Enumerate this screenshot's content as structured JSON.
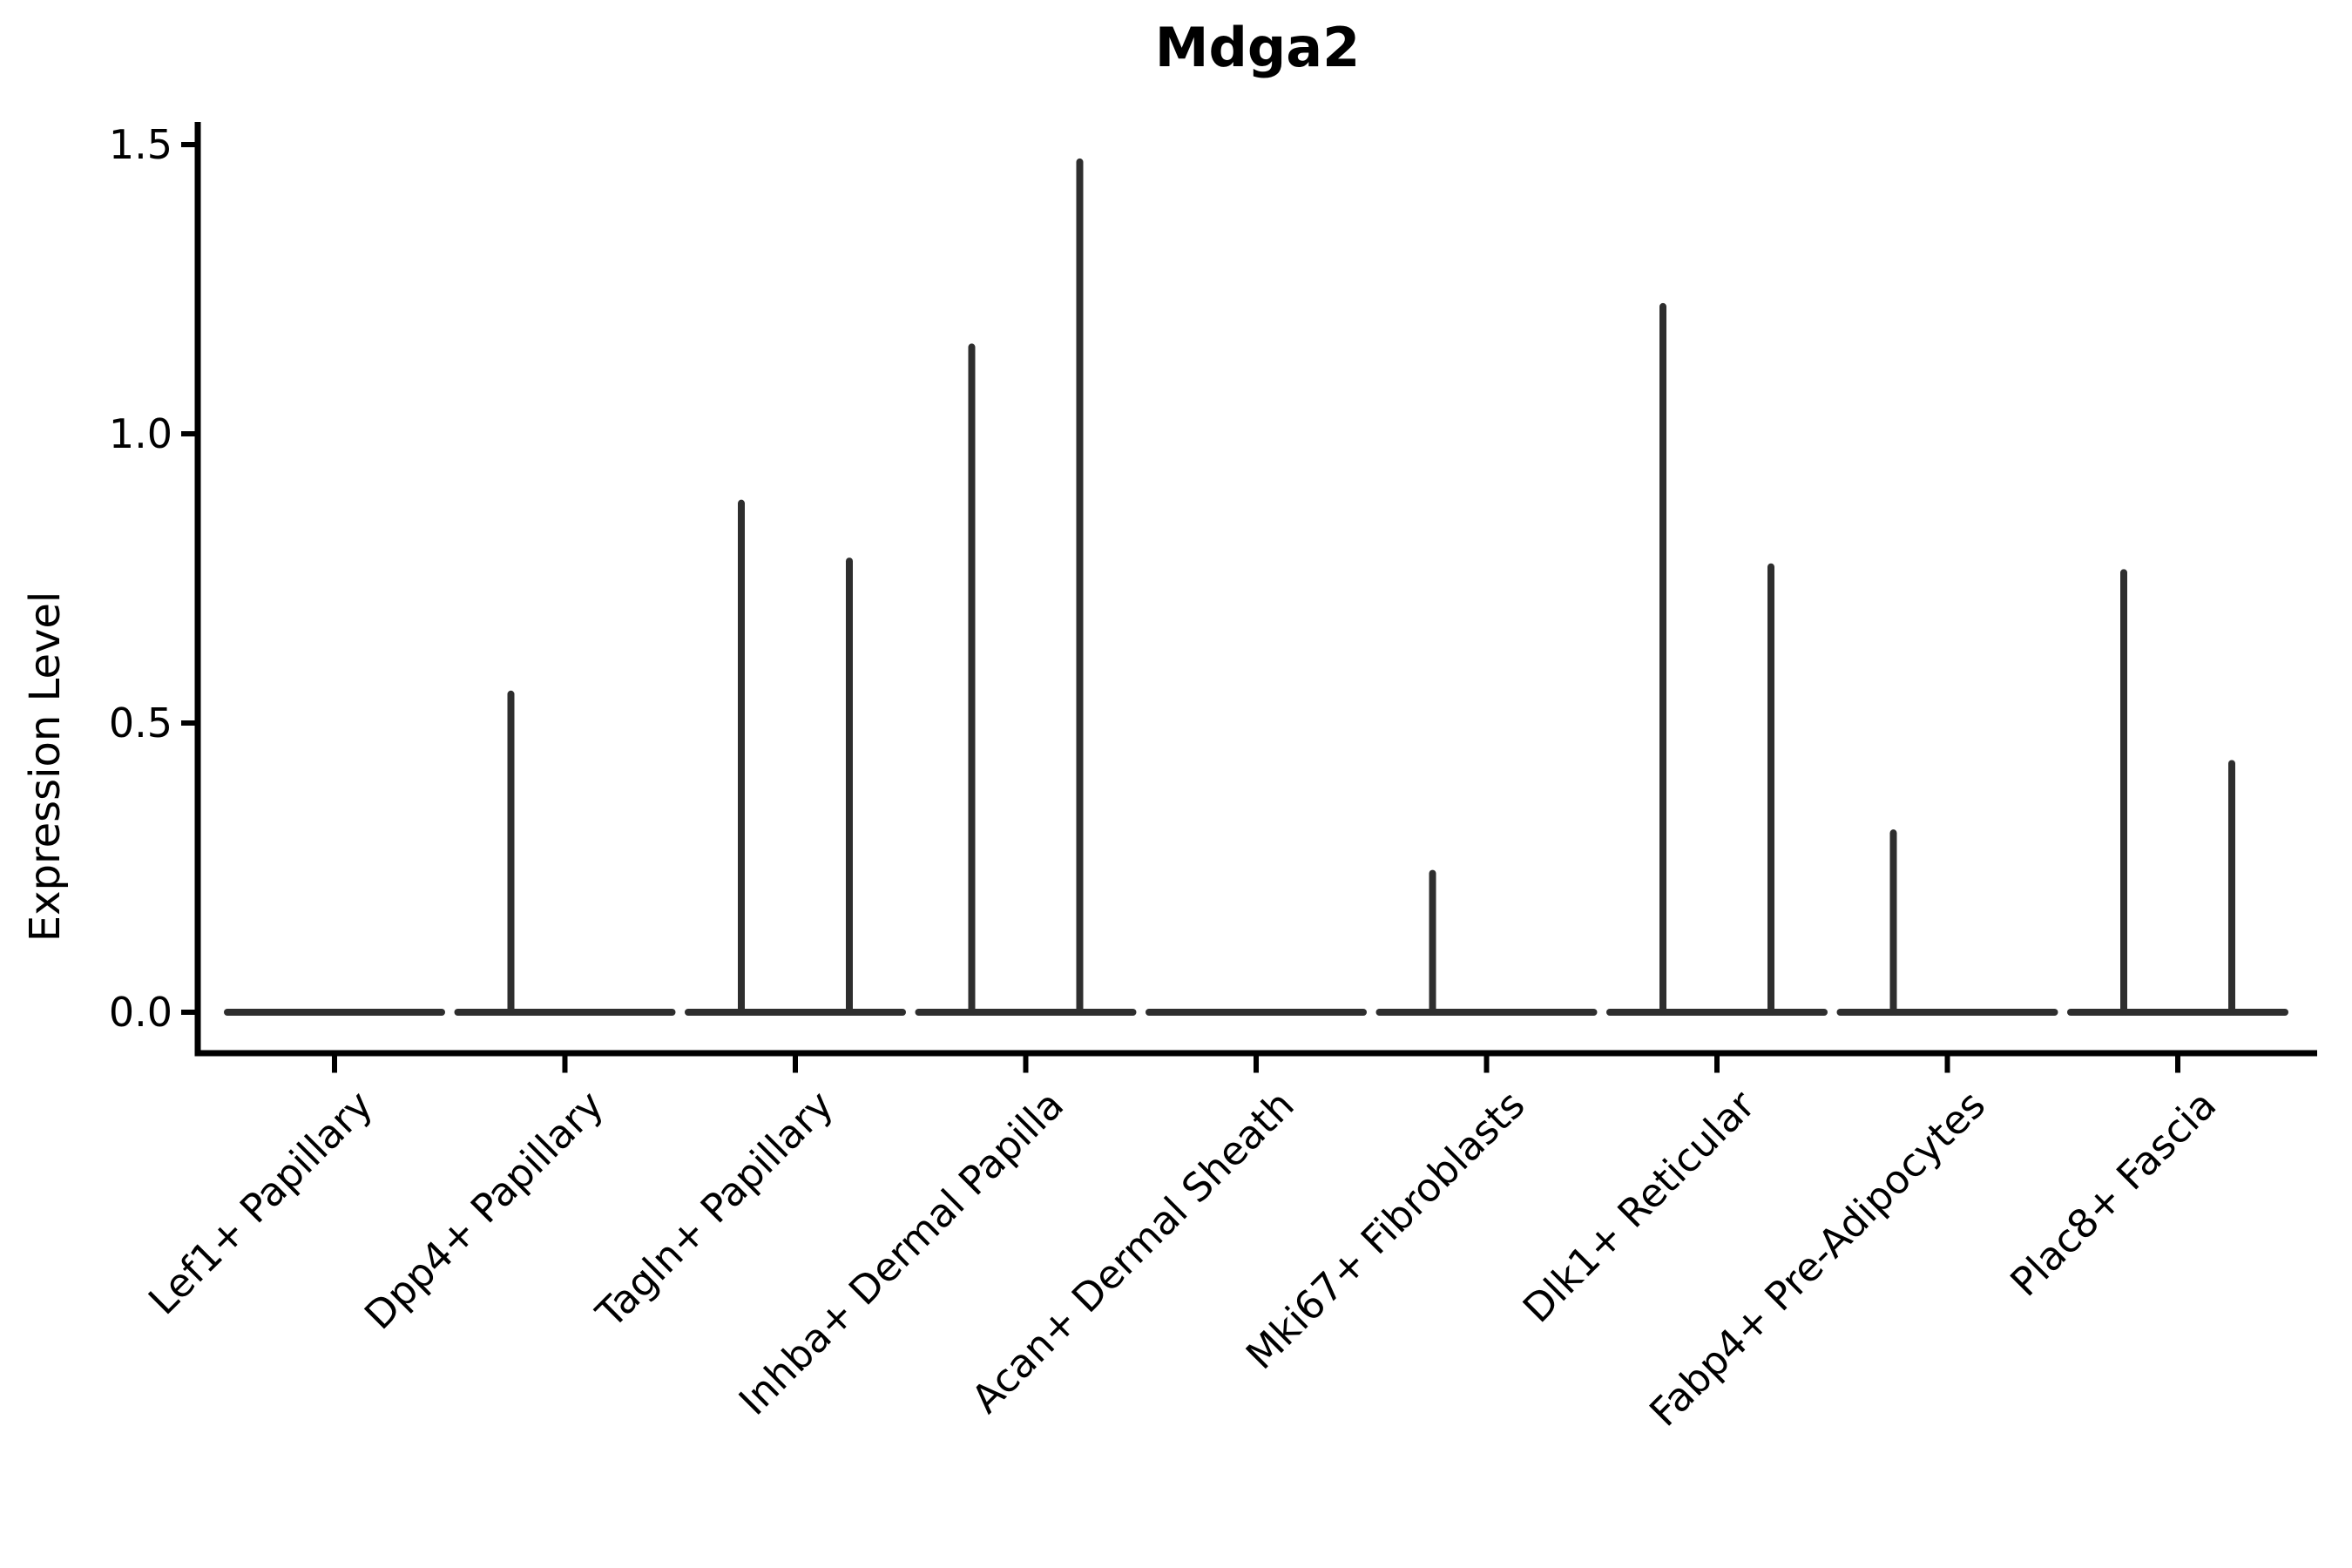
{
  "title": "Mdga2",
  "style": {
    "background": "#ffffff",
    "violin_line_color": "#2e2e2e",
    "axis_color": "#000000",
    "text_color": "#000000"
  },
  "chart_data": {
    "type": "violin",
    "title": "Mdga2",
    "xlabel": "",
    "ylabel": "Expression Level",
    "ylim": [
      0.0,
      1.5
    ],
    "ytick_values": [
      0.0,
      0.5,
      1.0,
      1.5
    ],
    "ytick_labels": [
      "0.0",
      "0.5",
      "1.0",
      "1.5"
    ],
    "grid": false,
    "legend": "none",
    "categories": [
      "Lef1+ Papillary",
      "Dpp4+ Papillary",
      "Tagln+ Papillary",
      "Inhba+ Dermal Papilla",
      "Acan+ Dermal Sheath",
      "Mki67+ Fibroblasts",
      "Dlk1+ Reticular",
      "Fabp4+ Pre-Adipocytes",
      "Plac8+ Fascia"
    ],
    "description": "Violin plot of Mdga2 expression; each category shows two narrow violins collapsed to a flat baseline at 0 with thin peaks at the maxima listed below (0 = no peak, violin flat at baseline).",
    "series": [
      {
        "name": "left-violin-peak",
        "values": [
          0,
          0.55,
          0.88,
          1.15,
          0,
          0.24,
          1.22,
          0.31,
          0.76
        ]
      },
      {
        "name": "right-violin-peak",
        "values": [
          0,
          0,
          0.78,
          1.47,
          0,
          0,
          0.77,
          0,
          0.43
        ]
      }
    ]
  }
}
